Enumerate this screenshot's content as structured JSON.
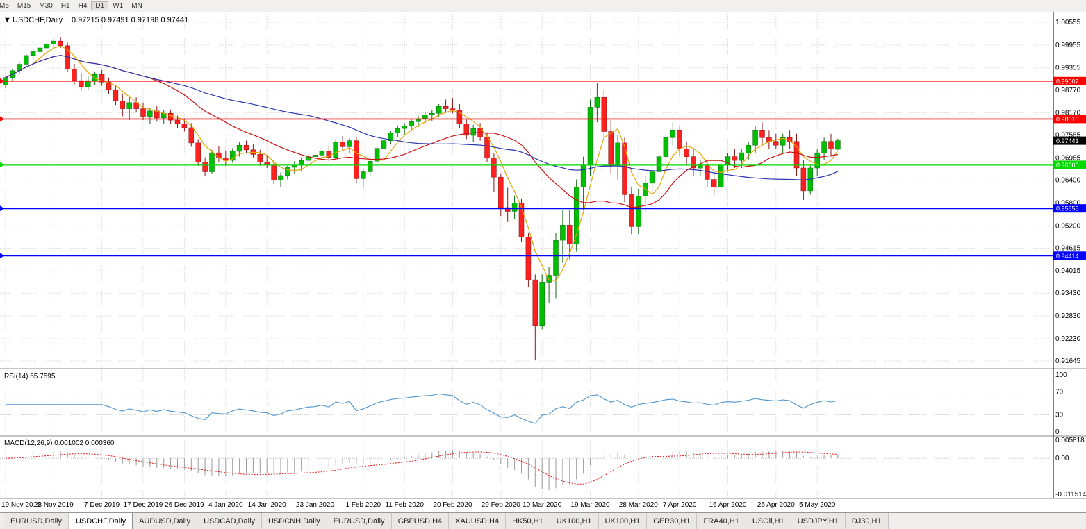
{
  "toolbar": {
    "timeframes": [
      {
        "label": "M5"
      },
      {
        "label": "M15"
      },
      {
        "label": "M30"
      },
      {
        "label": "H1"
      },
      {
        "label": "H4"
      },
      {
        "label": "D1"
      },
      {
        "label": "W1"
      },
      {
        "label": "MN"
      }
    ],
    "active": "D1"
  },
  "colors": {
    "up": "#00bf00",
    "down": "#ff2020",
    "up_wick": "#0f6b0f",
    "down_wick": "#8b1515",
    "grid": "#d8d8d8",
    "macd_hist": "#9a9a9a",
    "macd_signal": "#ee1111",
    "rsi_line": "#4f94cd",
    "resistance": "#ff0000",
    "support_green": "#00d800",
    "support_blue": "#0000ff",
    "current_price_box": "#000000"
  },
  "chart_data": [
    {
      "type": "candlestick",
      "title": "USDCHF,Daily",
      "ohlc_text": "0.97215 0.97491 0.97198 0.97441",
      "ohlc": {
        "open": 0.97215,
        "high": 0.97491,
        "low": 0.97198,
        "close": 0.97441
      },
      "ylim": [
        0.91645,
        1.00555
      ],
      "y_ticks": [
        "1.00555",
        "0.99955",
        "0.99355",
        "0.98770",
        "0.98170",
        "0.97585",
        "0.96985",
        "0.96400",
        "0.95800",
        "0.95200",
        "0.94615",
        "0.94015",
        "0.93430",
        "0.92830",
        "0.92230",
        "0.91645"
      ],
      "date_ticks": [
        {
          "label": "19 Nov 2019",
          "i": 0
        },
        {
          "label": "28 Nov 2019",
          "i": 7
        },
        {
          "label": "7 Dec 2019",
          "i": 14
        },
        {
          "label": "17 Dec 2019",
          "i": 20
        },
        {
          "label": "26 Dec 2019",
          "i": 26
        },
        {
          "label": "4 Jan 2020",
          "i": 32
        },
        {
          "label": "14 Jan 2020",
          "i": 38
        },
        {
          "label": "23 Jan 2020",
          "i": 45
        },
        {
          "label": "1 Feb 2020",
          "i": 52
        },
        {
          "label": "11 Feb 2020",
          "i": 58
        },
        {
          "label": "20 Feb 2020",
          "i": 65
        },
        {
          "label": "29 Feb 2020",
          "i": 72
        },
        {
          "label": "10 Mar 2020",
          "i": 78
        },
        {
          "label": "19 Mar 2020",
          "i": 85
        },
        {
          "label": "28 Mar 2020",
          "i": 92
        },
        {
          "label": "7 Apr 2020",
          "i": 98
        },
        {
          "label": "16 Apr 2020",
          "i": 105
        },
        {
          "label": "25 Apr 2020",
          "i": 112
        },
        {
          "label": "5 May 2020",
          "i": 118
        }
      ],
      "hlines": [
        {
          "value": 0.99007,
          "label": "0.99007",
          "color": "#ff0000",
          "width": 1.6,
          "kind": "resistance"
        },
        {
          "value": 0.9801,
          "label": "0.98010",
          "color": "#ff0000",
          "width": 1.6,
          "kind": "resistance"
        },
        {
          "value": 0.97441,
          "label": "0.97441",
          "color": "#000000",
          "width": 0,
          "kind": "current-price"
        },
        {
          "value": 0.96805,
          "label": "0.96805",
          "color": "#00d800",
          "width": 2.2,
          "kind": "support"
        },
        {
          "value": 0.95658,
          "label": "0.95658",
          "color": "#0000ff",
          "width": 2,
          "kind": "support"
        },
        {
          "value": 0.94414,
          "label": "0.94414",
          "color": "#0000ff",
          "width": 2,
          "kind": "support"
        }
      ],
      "moving_averages": [
        {
          "name": "fast-ma",
          "period": 5,
          "color": "#e6a400"
        },
        {
          "name": "medium-ma",
          "period": 20,
          "color": "#cc1111"
        },
        {
          "name": "slow-ma",
          "period": 45,
          "color": "#2a35b0"
        }
      ],
      "candles": [
        [
          0.989,
          0.9915,
          0.9882,
          0.991
        ],
        [
          0.991,
          0.9932,
          0.99,
          0.9928
        ],
        [
          0.9928,
          0.995,
          0.9918,
          0.9945
        ],
        [
          0.9945,
          0.9972,
          0.9938,
          0.9968
        ],
        [
          0.9968,
          0.9984,
          0.9958,
          0.9978
        ],
        [
          0.9978,
          0.9994,
          0.9968,
          0.9988
        ],
        [
          0.9988,
          1.0004,
          0.9978,
          0.9998
        ],
        [
          0.9998,
          1.0012,
          0.9986,
          1.0006
        ],
        [
          1.0006,
          1.0016,
          0.9988,
          0.9994
        ],
        [
          0.9994,
          1.0002,
          0.9924,
          0.9932
        ],
        [
          0.9932,
          0.9946,
          0.9892,
          0.9902
        ],
        [
          0.9902,
          0.9922,
          0.9876,
          0.9886
        ],
        [
          0.9886,
          0.9914,
          0.9878,
          0.9902
        ],
        [
          0.9902,
          0.9926,
          0.989,
          0.9918
        ],
        [
          0.9918,
          0.993,
          0.9888,
          0.9898
        ],
        [
          0.9898,
          0.991,
          0.9868,
          0.9878
        ],
        [
          0.9878,
          0.989,
          0.9838,
          0.9848
        ],
        [
          0.9848,
          0.9868,
          0.9808,
          0.9828
        ],
        [
          0.9828,
          0.9858,
          0.9798,
          0.9844
        ],
        [
          0.9844,
          0.9858,
          0.9818,
          0.9828
        ],
        [
          0.9828,
          0.9844,
          0.9798,
          0.9808
        ],
        [
          0.9808,
          0.983,
          0.9788,
          0.9822
        ],
        [
          0.9822,
          0.9836,
          0.9794,
          0.9804
        ],
        [
          0.9804,
          0.9824,
          0.9788,
          0.9816
        ],
        [
          0.9816,
          0.9826,
          0.9788,
          0.9798
        ],
        [
          0.9798,
          0.981,
          0.9778,
          0.9788
        ],
        [
          0.9788,
          0.98,
          0.9768,
          0.9778
        ],
        [
          0.9778,
          0.979,
          0.9728,
          0.9738
        ],
        [
          0.9738,
          0.9748,
          0.9678,
          0.9688
        ],
        [
          0.9688,
          0.97,
          0.9652,
          0.9662
        ],
        [
          0.9662,
          0.972,
          0.9656,
          0.9712
        ],
        [
          0.9712,
          0.973,
          0.9688,
          0.9698
        ],
        [
          0.9698,
          0.9718,
          0.9678,
          0.9692
        ],
        [
          0.9692,
          0.9724,
          0.9686,
          0.9716
        ],
        [
          0.9716,
          0.974,
          0.9702,
          0.9732
        ],
        [
          0.9732,
          0.9744,
          0.9712,
          0.972
        ],
        [
          0.972,
          0.9734,
          0.97,
          0.9708
        ],
        [
          0.9708,
          0.972,
          0.9678,
          0.9688
        ],
        [
          0.9688,
          0.9704,
          0.9672,
          0.9682
        ],
        [
          0.9682,
          0.9694,
          0.963,
          0.964
        ],
        [
          0.964,
          0.966,
          0.9622,
          0.9652
        ],
        [
          0.9652,
          0.968,
          0.9642,
          0.9674
        ],
        [
          0.9674,
          0.969,
          0.9658,
          0.968
        ],
        [
          0.968,
          0.97,
          0.9664,
          0.9692
        ],
        [
          0.9692,
          0.971,
          0.9676,
          0.9702
        ],
        [
          0.9702,
          0.9716,
          0.9686,
          0.9706
        ],
        [
          0.9706,
          0.9726,
          0.9694,
          0.9716
        ],
        [
          0.9716,
          0.973,
          0.969,
          0.97
        ],
        [
          0.97,
          0.9746,
          0.9694,
          0.974
        ],
        [
          0.974,
          0.9756,
          0.9718,
          0.9728
        ],
        [
          0.9728,
          0.975,
          0.971,
          0.9744
        ],
        [
          0.9744,
          0.9752,
          0.9634,
          0.9644
        ],
        [
          0.9644,
          0.967,
          0.962,
          0.9662
        ],
        [
          0.9662,
          0.9696,
          0.9652,
          0.969
        ],
        [
          0.969,
          0.973,
          0.9682,
          0.9724
        ],
        [
          0.9724,
          0.975,
          0.9714,
          0.9744
        ],
        [
          0.9744,
          0.977,
          0.9734,
          0.9764
        ],
        [
          0.9764,
          0.9784,
          0.9754,
          0.9776
        ],
        [
          0.9776,
          0.979,
          0.976,
          0.9782
        ],
        [
          0.9782,
          0.98,
          0.977,
          0.9794
        ],
        [
          0.9794,
          0.981,
          0.978,
          0.9802
        ],
        [
          0.9802,
          0.982,
          0.979,
          0.9812
        ],
        [
          0.9812,
          0.9824,
          0.9796,
          0.9816
        ],
        [
          0.9816,
          0.984,
          0.9806,
          0.9834
        ],
        [
          0.9834,
          0.9852,
          0.982,
          0.9828
        ],
        [
          0.9828,
          0.9856,
          0.9816,
          0.9824
        ],
        [
          0.9824,
          0.984,
          0.9778,
          0.9788
        ],
        [
          0.9788,
          0.98,
          0.9748,
          0.9758
        ],
        [
          0.9758,
          0.9786,
          0.974,
          0.9776
        ],
        [
          0.9776,
          0.979,
          0.9744,
          0.9754
        ],
        [
          0.9754,
          0.9766,
          0.9688,
          0.9698
        ],
        [
          0.9698,
          0.971,
          0.9608,
          0.9648
        ],
        [
          0.9648,
          0.9658,
          0.9546,
          0.9568
        ],
        [
          0.9568,
          0.962,
          0.953,
          0.9558
        ],
        [
          0.9558,
          0.96,
          0.9538,
          0.958
        ],
        [
          0.958,
          0.9592,
          0.9478,
          0.949
        ],
        [
          0.949,
          0.9502,
          0.9358,
          0.9378
        ],
        [
          0.9378,
          0.9392,
          0.9166,
          0.9258
        ],
        [
          0.9258,
          0.9392,
          0.9248,
          0.9372
        ],
        [
          0.9372,
          0.9412,
          0.9318,
          0.939
        ],
        [
          0.939,
          0.9502,
          0.933,
          0.9482
        ],
        [
          0.9482,
          0.9562,
          0.9422,
          0.9522
        ],
        [
          0.9522,
          0.9562,
          0.9432,
          0.9472
        ],
        [
          0.9472,
          0.9642,
          0.9452,
          0.9622
        ],
        [
          0.9622,
          0.9702,
          0.9562,
          0.9682
        ],
        [
          0.9682,
          0.9852,
          0.9652,
          0.9832
        ],
        [
          0.9832,
          0.9896,
          0.9792,
          0.9858
        ],
        [
          0.9858,
          0.9878,
          0.9748,
          0.9768
        ],
        [
          0.9768,
          0.9798,
          0.9658,
          0.9678
        ],
        [
          0.9678,
          0.9758,
          0.9642,
          0.9738
        ],
        [
          0.9738,
          0.9752,
          0.9582,
          0.9602
        ],
        [
          0.9602,
          0.9622,
          0.9498,
          0.9518
        ],
        [
          0.9518,
          0.9618,
          0.9498,
          0.9598
        ],
        [
          0.9598,
          0.9652,
          0.9558,
          0.9632
        ],
        [
          0.9632,
          0.9682,
          0.9602,
          0.9662
        ],
        [
          0.9662,
          0.9722,
          0.9642,
          0.9702
        ],
        [
          0.9702,
          0.9762,
          0.9682,
          0.9752
        ],
        [
          0.9752,
          0.9792,
          0.9732,
          0.9772
        ],
        [
          0.9772,
          0.9782,
          0.9702,
          0.9722
        ],
        [
          0.9722,
          0.9742,
          0.9682,
          0.9702
        ],
        [
          0.9702,
          0.9722,
          0.9652,
          0.9672
        ],
        [
          0.9672,
          0.9692,
          0.9652,
          0.9682
        ],
        [
          0.9682,
          0.9692,
          0.9622,
          0.9642
        ],
        [
          0.9642,
          0.9662,
          0.9602,
          0.9622
        ],
        [
          0.9622,
          0.9692,
          0.9612,
          0.9682
        ],
        [
          0.9682,
          0.9712,
          0.9662,
          0.9702
        ],
        [
          0.9702,
          0.9722,
          0.9672,
          0.9692
        ],
        [
          0.9692,
          0.9722,
          0.9672,
          0.9712
        ],
        [
          0.9712,
          0.9742,
          0.9692,
          0.9732
        ],
        [
          0.9732,
          0.9782,
          0.9712,
          0.9772
        ],
        [
          0.9772,
          0.9792,
          0.9732,
          0.9752
        ],
        [
          0.9752,
          0.9772,
          0.9722,
          0.9742
        ],
        [
          0.9742,
          0.9762,
          0.9722,
          0.9732
        ],
        [
          0.9732,
          0.9762,
          0.9712,
          0.9752
        ],
        [
          0.9752,
          0.9772,
          0.9722,
          0.9742
        ],
        [
          0.9742,
          0.9762,
          0.9652,
          0.9672
        ],
        [
          0.9672,
          0.9692,
          0.9588,
          0.9612
        ],
        [
          0.9612,
          0.9682,
          0.9602,
          0.9672
        ],
        [
          0.9672,
          0.9722,
          0.9652,
          0.9712
        ],
        [
          0.9712,
          0.9752,
          0.9692,
          0.9742
        ],
        [
          0.9742,
          0.9762,
          0.9702,
          0.9722
        ],
        [
          0.97215,
          0.97491,
          0.97198,
          0.97441
        ]
      ]
    },
    {
      "type": "line",
      "label": "RSI(14) 55.7595",
      "period": 14,
      "value": 55.7595,
      "levels": [
        "100",
        "70",
        "30",
        "0"
      ],
      "level_lines": [
        70,
        30
      ],
      "ylim": [
        0,
        100
      ],
      "color": "#4f94cd"
    },
    {
      "type": "histogram+line",
      "label": "MACD(12,26,9) 0.001002 0.000360",
      "fast": 12,
      "slow": 26,
      "signal": 9,
      "value": 0.001002,
      "signal_value": 0.00036,
      "y_ticks": [
        {
          "label": "0.005818",
          "value": 0.005818
        },
        {
          "label": "0.00",
          "value": 0
        },
        {
          "label": "-0.011514",
          "value": -0.011514
        }
      ],
      "ylim": [
        -0.011514,
        0.005818
      ]
    }
  ],
  "tabs": {
    "items": [
      {
        "label": "EURUSD,Daily"
      },
      {
        "label": "USDCHF,Daily",
        "active": true
      },
      {
        "label": "AUDUSD,Daily"
      },
      {
        "label": "USDCAD,Daily"
      },
      {
        "label": "USDCNH,Daily"
      },
      {
        "label": "EURUSD,Daily"
      },
      {
        "label": "GBPUSD,H4"
      },
      {
        "label": "XAUUSD,H4"
      },
      {
        "label": "HK50,H1"
      },
      {
        "label": "UK100,H1"
      },
      {
        "label": "UK100,H1"
      },
      {
        "label": "GER30,H1"
      },
      {
        "label": "FRA40,H1"
      },
      {
        "label": "USOil,H1"
      },
      {
        "label": "USDJPY,H1"
      },
      {
        "label": "DJ30,H1"
      }
    ]
  }
}
